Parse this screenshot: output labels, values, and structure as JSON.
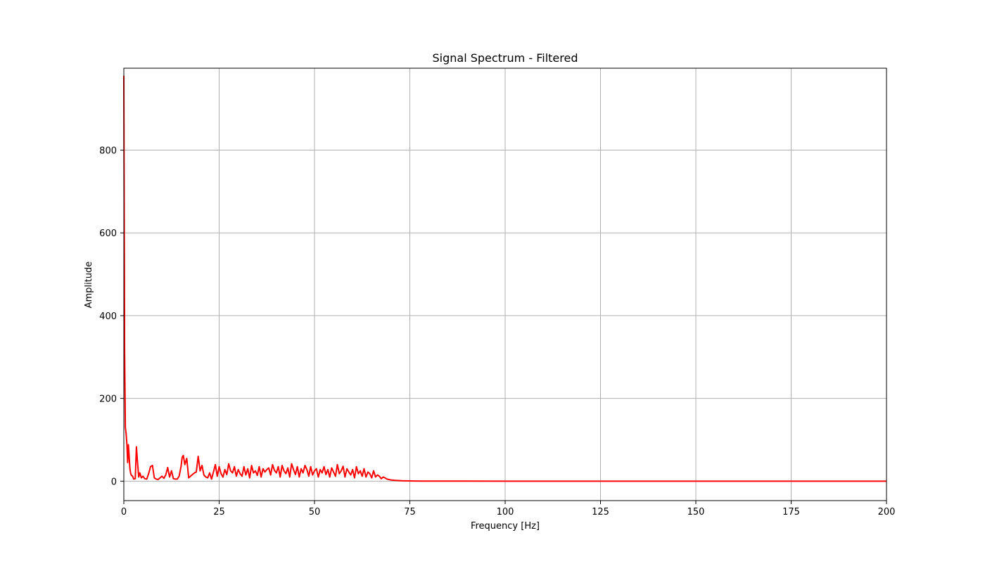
{
  "chart_data": {
    "type": "line",
    "title": "Signal Spectrum - Filtered",
    "xlabel": "Frequency [Hz]",
    "ylabel": "Amplitude",
    "xlim": [
      0,
      200
    ],
    "ylim": [
      -47,
      998
    ],
    "xticks": [
      0,
      25,
      50,
      75,
      100,
      125,
      150,
      175,
      200
    ],
    "yticks": [
      0,
      200,
      400,
      600,
      800
    ],
    "grid": true,
    "legend": "none",
    "colors": {
      "line": "#ff0000",
      "grid": "#b0b0b0",
      "axes": "#000000"
    },
    "series": [
      {
        "x": [
          0,
          0.2,
          0.4,
          0.6,
          0.8,
          1.0,
          1.2,
          1.4,
          1.6,
          1.8,
          2.0,
          2.3,
          2.6,
          3.0,
          3.3,
          3.6,
          3.9,
          4.2,
          4.6,
          5.0,
          5.5,
          6.0,
          6.5,
          7.0,
          7.5,
          8.0,
          8.5,
          9.0,
          9.5,
          10.0,
          10.5,
          11.0,
          11.5,
          12.0,
          12.5,
          13.0,
          13.5,
          14.0,
          14.5,
          15.0,
          15.3,
          15.6,
          16.0,
          16.5,
          17.0,
          17.5,
          18.0,
          18.5,
          19.0,
          19.5,
          20.0,
          20.5,
          21.0,
          21.5,
          22.0,
          22.5,
          23.0,
          23.5,
          24.0,
          24.5,
          25.0,
          25.5,
          26.0,
          26.5,
          27.0,
          27.5,
          28.0,
          28.5,
          29.0,
          29.5,
          30.0,
          30.5,
          31.0,
          31.5,
          32.0,
          32.5,
          33.0,
          33.5,
          34.0,
          34.5,
          35.0,
          35.5,
          36.0,
          36.5,
          37.0,
          37.5,
          38.0,
          38.5,
          39.0,
          39.5,
          40.0,
          40.5,
          41.0,
          41.5,
          42.0,
          42.5,
          43.0,
          43.5,
          44.0,
          44.5,
          45.0,
          45.5,
          46.0,
          46.5,
          47.0,
          47.5,
          48.0,
          48.5,
          49.0,
          49.5,
          50.0,
          50.5,
          51.0,
          51.5,
          52.0,
          52.5,
          53.0,
          53.5,
          54.0,
          54.5,
          55.0,
          55.5,
          56.0,
          56.5,
          57.0,
          57.5,
          58.0,
          58.5,
          59.0,
          59.5,
          60.0,
          60.5,
          61.0,
          61.5,
          62.0,
          62.5,
          63.0,
          63.5,
          64.0,
          64.5,
          65.0,
          65.5,
          66.0,
          66.5,
          67.0,
          67.5,
          68.0,
          68.5,
          69.0,
          69.5,
          70.0,
          71.0,
          72.0,
          73.0,
          74.0,
          75.0,
          76.0,
          78.0,
          80.0,
          90.0,
          100.0,
          125.0,
          150.0,
          175.0,
          200.0
        ],
        "values": [
          980,
          320,
          130,
          115,
          90,
          45,
          88,
          60,
          30,
          18,
          14,
          12,
          5,
          6,
          83,
          45,
          10,
          20,
          8,
          12,
          6,
          5,
          18,
          35,
          38,
          8,
          5,
          4,
          8,
          12,
          7,
          15,
          33,
          10,
          25,
          6,
          5,
          5,
          12,
          35,
          58,
          62,
          40,
          55,
          8,
          12,
          16,
          20,
          22,
          60,
          25,
          38,
          15,
          10,
          8,
          20,
          5,
          22,
          40,
          12,
          35,
          18,
          10,
          28,
          16,
          42,
          25,
          20,
          35,
          12,
          28,
          18,
          12,
          35,
          15,
          30,
          8,
          38,
          20,
          25,
          14,
          35,
          10,
          30,
          22,
          28,
          32,
          15,
          40,
          26,
          20,
          35,
          10,
          38,
          25,
          18,
          32,
          10,
          42,
          28,
          16,
          35,
          10,
          30,
          20,
          38,
          28,
          12,
          35,
          15,
          25,
          30,
          10,
          28,
          20,
          35,
          16,
          28,
          10,
          32,
          22,
          12,
          40,
          18,
          25,
          36,
          10,
          30,
          22,
          15,
          28,
          8,
          35,
          18,
          25,
          12,
          30,
          10,
          22,
          18,
          8,
          25,
          10,
          15,
          12,
          6,
          10,
          8,
          5,
          4,
          3,
          2,
          1.5,
          1,
          0.8,
          0.5,
          0.3,
          0.2,
          0.1,
          0.05,
          0.02,
          0.01,
          0.01,
          0.01,
          0.01
        ]
      }
    ]
  }
}
